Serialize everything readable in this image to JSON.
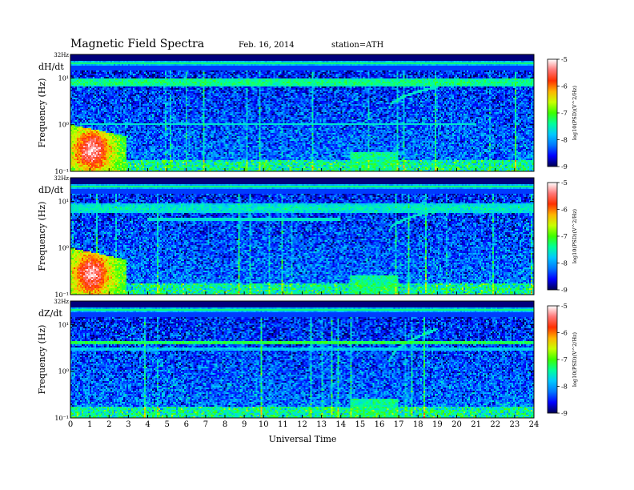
{
  "header": {
    "title": "Magnetic Field Spectra",
    "date": "Feb. 16, 2014",
    "station": "station=ATH"
  },
  "chart_data": {
    "type": "heatmap",
    "xlabel": "Universal Time",
    "x_ticks": [
      "0",
      "1",
      "2",
      "3",
      "4",
      "5",
      "6",
      "7",
      "8",
      "9",
      "10",
      "11",
      "12",
      "13",
      "14",
      "15",
      "16",
      "17",
      "18",
      "19",
      "20",
      "21",
      "22",
      "23",
      "24"
    ],
    "xlim": [
      0,
      24
    ],
    "ylim_hz": [
      0.1,
      32
    ],
    "y_scale": "log",
    "colorbar": {
      "label": "log10(PSD)(V^2/Hz)",
      "ticks": [
        "-5",
        "-6",
        "-7",
        "-8",
        "-9"
      ],
      "range": [
        -9,
        -5
      ],
      "colors": [
        "#000050",
        "#0000ff",
        "#0078ff",
        "#00c8ff",
        "#00ff9a",
        "#3cff00",
        "#c8ff00",
        "#ffb400",
        "#ff3000",
        "#ff7878",
        "#ffffff"
      ]
    },
    "panels": [
      {
        "component": "dH/dt",
        "ylabel": "Frequency (Hz)",
        "y_ticks": [
          {
            "label": "32Hz",
            "hz": 32
          },
          {
            "label": "10¹",
            "hz": 10
          },
          {
            "label": "10⁰",
            "hz": 1
          },
          {
            "label": "10⁻¹",
            "hz": 0.1
          }
        ],
        "features": {
          "low_freq_burst": {
            "t0": 0.0,
            "t1": 2.9,
            "f_max": 1.0,
            "peak_log_psd": -5.3
          },
          "band_8hz": {
            "hz": 8.0,
            "log_psd": -7.3,
            "t0": 0,
            "t1": 24
          },
          "line_1hz": {
            "hz": 1.0,
            "log_psd": -7.6,
            "t0": 0.5,
            "t1": 21
          },
          "pc1_rising_tone": {
            "t0": 16.5,
            "t1": 19.0,
            "f0": 2.2,
            "f1": 6.5
          }
        }
      },
      {
        "component": "dD/dt",
        "ylabel": "Frequency (Hz)",
        "y_ticks": [
          {
            "label": "32Hz",
            "hz": 32
          },
          {
            "label": "10¹",
            "hz": 10
          },
          {
            "label": "10⁰",
            "hz": 1
          },
          {
            "label": "10⁻¹",
            "hz": 0.1
          }
        ],
        "features": {
          "low_freq_burst": {
            "t0": 0.0,
            "t1": 2.9,
            "f_max": 1.0,
            "peak_log_psd": -5.3
          },
          "band_8hz": {
            "hz": 7.0,
            "log_psd": -7.5,
            "t0": 0,
            "t1": 24
          },
          "band_4hz": {
            "hz": 4.0,
            "log_psd": -7.6,
            "t0": 4,
            "t1": 14
          },
          "pc1_rising_tone": {
            "t0": 16.5,
            "t1": 19.0,
            "f0": 2.2,
            "f1": 6.5
          }
        }
      },
      {
        "component": "dZ/dt",
        "ylabel": "Frequency (Hz)",
        "y_ticks": [
          {
            "label": "32Hz",
            "hz": 32
          },
          {
            "label": "10¹",
            "hz": 10
          },
          {
            "label": "10⁰",
            "hz": 1
          },
          {
            "label": "10⁻¹",
            "hz": 0.1
          }
        ],
        "features": {
          "band_4hz": {
            "hz": 4.0,
            "log_psd": -7.2,
            "t0": 0,
            "t1": 24
          },
          "band_3hz": {
            "hz": 3.0,
            "log_psd": -7.8,
            "t0": 0,
            "t1": 24
          },
          "pc1_rising_tone": {
            "t0": 16.5,
            "t1": 19.0,
            "f0": 1.5,
            "f1": 8.0
          }
        }
      }
    ]
  }
}
